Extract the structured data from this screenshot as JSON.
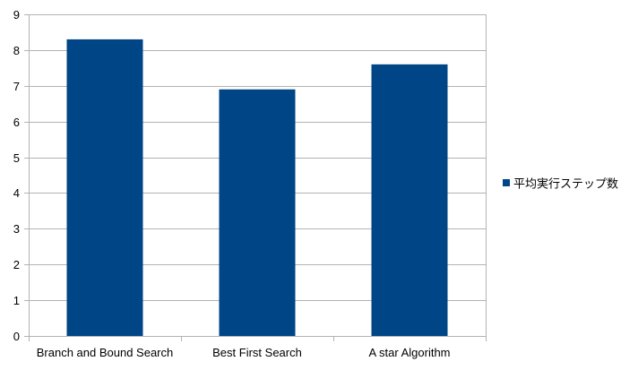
{
  "chart_data": {
    "type": "bar",
    "categories": [
      "Branch and Bound Search",
      "Best First Search",
      "A star Algorithm"
    ],
    "series": [
      {
        "name": "平均実行ステップ数",
        "values": [
          8.3,
          6.9,
          7.6
        ],
        "color": "#004586"
      }
    ],
    "title": "",
    "xlabel": "",
    "ylabel": "",
    "ylim": [
      0,
      9
    ],
    "yticks": [
      "0",
      "1",
      "2",
      "3",
      "4",
      "5",
      "6",
      "7",
      "8",
      "9"
    ],
    "grid": true,
    "grid_color": "#b3b3b3",
    "legend_position": "right"
  }
}
